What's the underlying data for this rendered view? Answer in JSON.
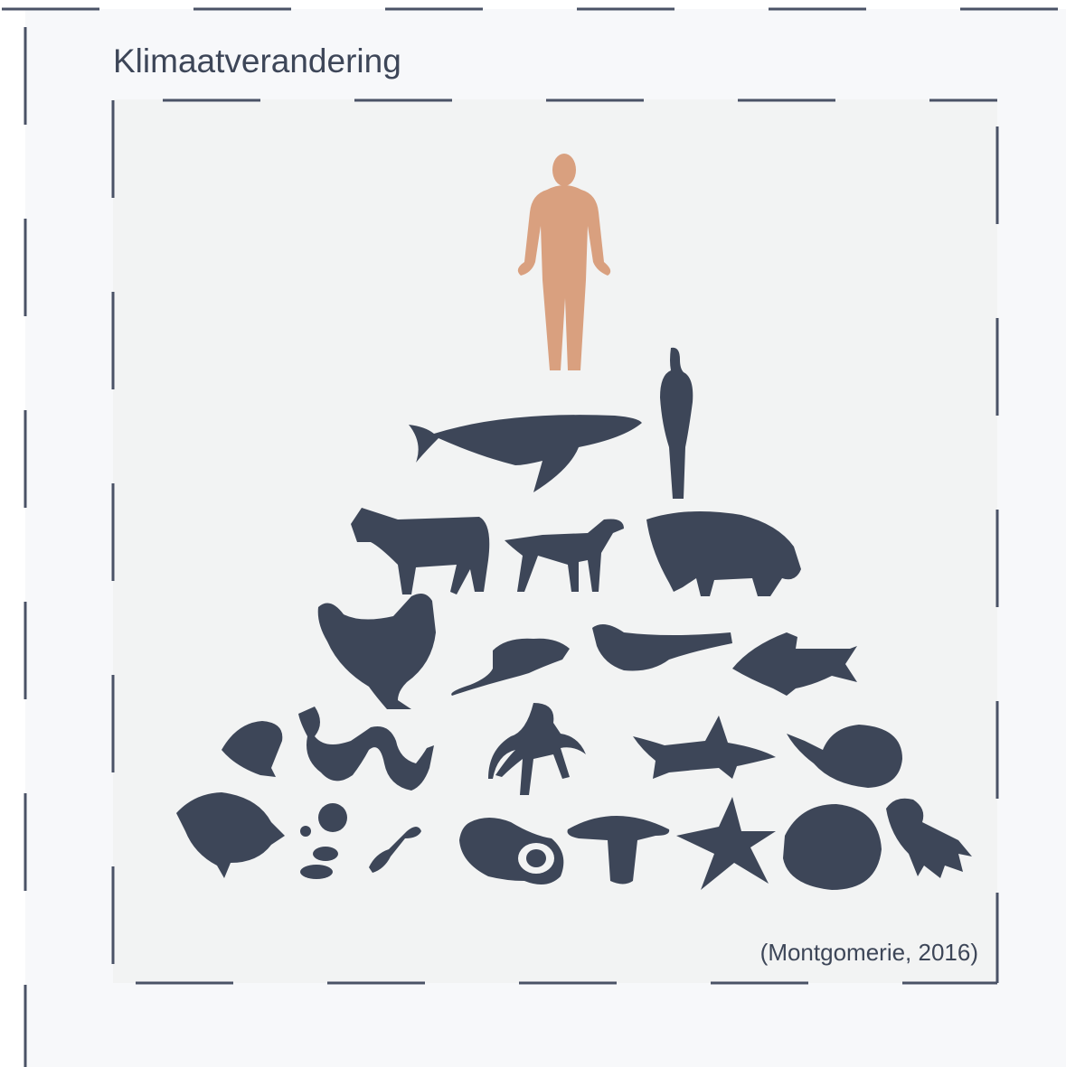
{
  "header": {
    "title": "Klimaatverandering"
  },
  "figure": {
    "caption": "(Montgomerie, 2016)"
  }
}
